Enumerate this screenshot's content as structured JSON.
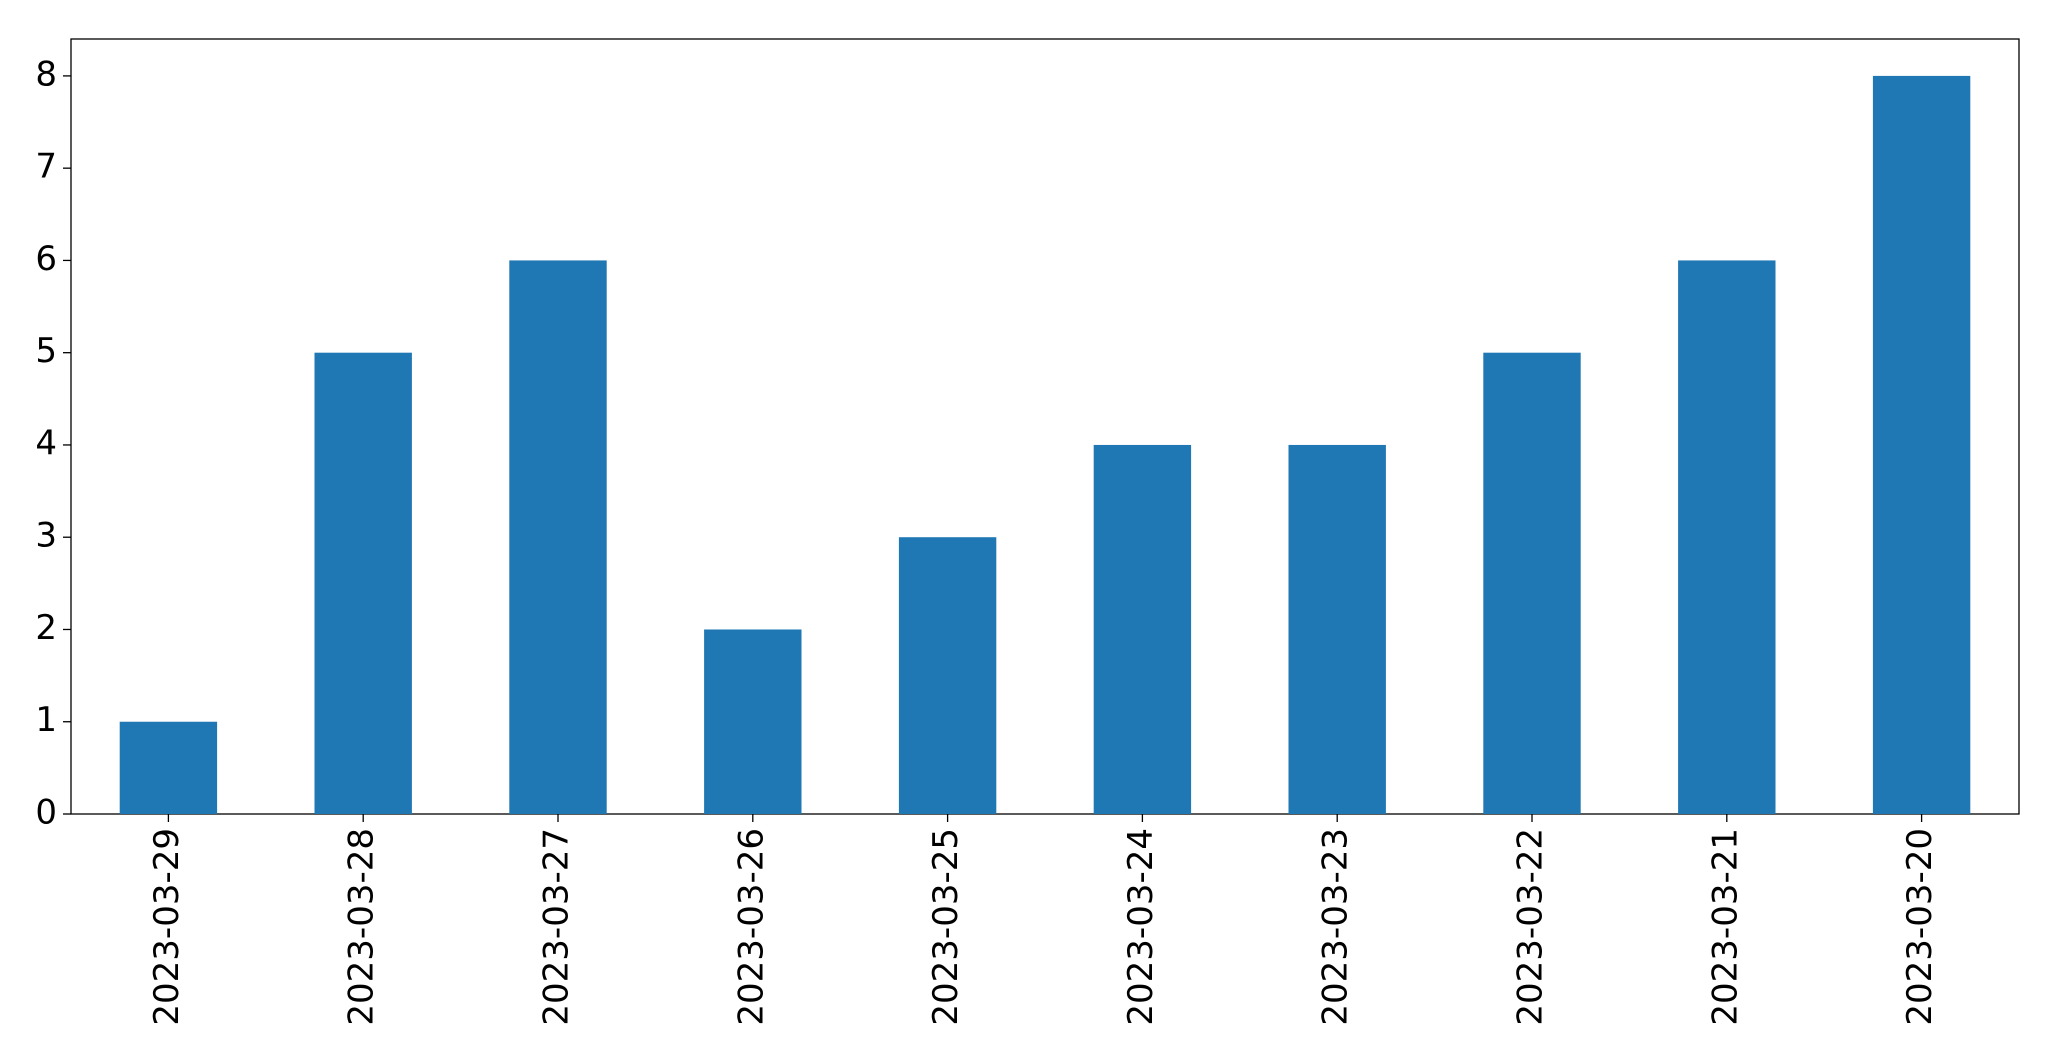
{
  "chart_data": {
    "type": "bar",
    "categories": [
      "2023-03-29",
      "2023-03-28",
      "2023-03-27",
      "2023-03-26",
      "2023-03-25",
      "2023-03-24",
      "2023-03-23",
      "2023-03-22",
      "2023-03-21",
      "2023-03-20"
    ],
    "values": [
      1,
      5,
      6,
      2,
      3,
      4,
      4,
      5,
      6,
      8
    ],
    "color": "#1f77b4",
    "ylim": [
      0,
      8.4
    ],
    "yticks": [
      0,
      1,
      2,
      3,
      4,
      5,
      6,
      7,
      8
    ],
    "grid": false
  }
}
